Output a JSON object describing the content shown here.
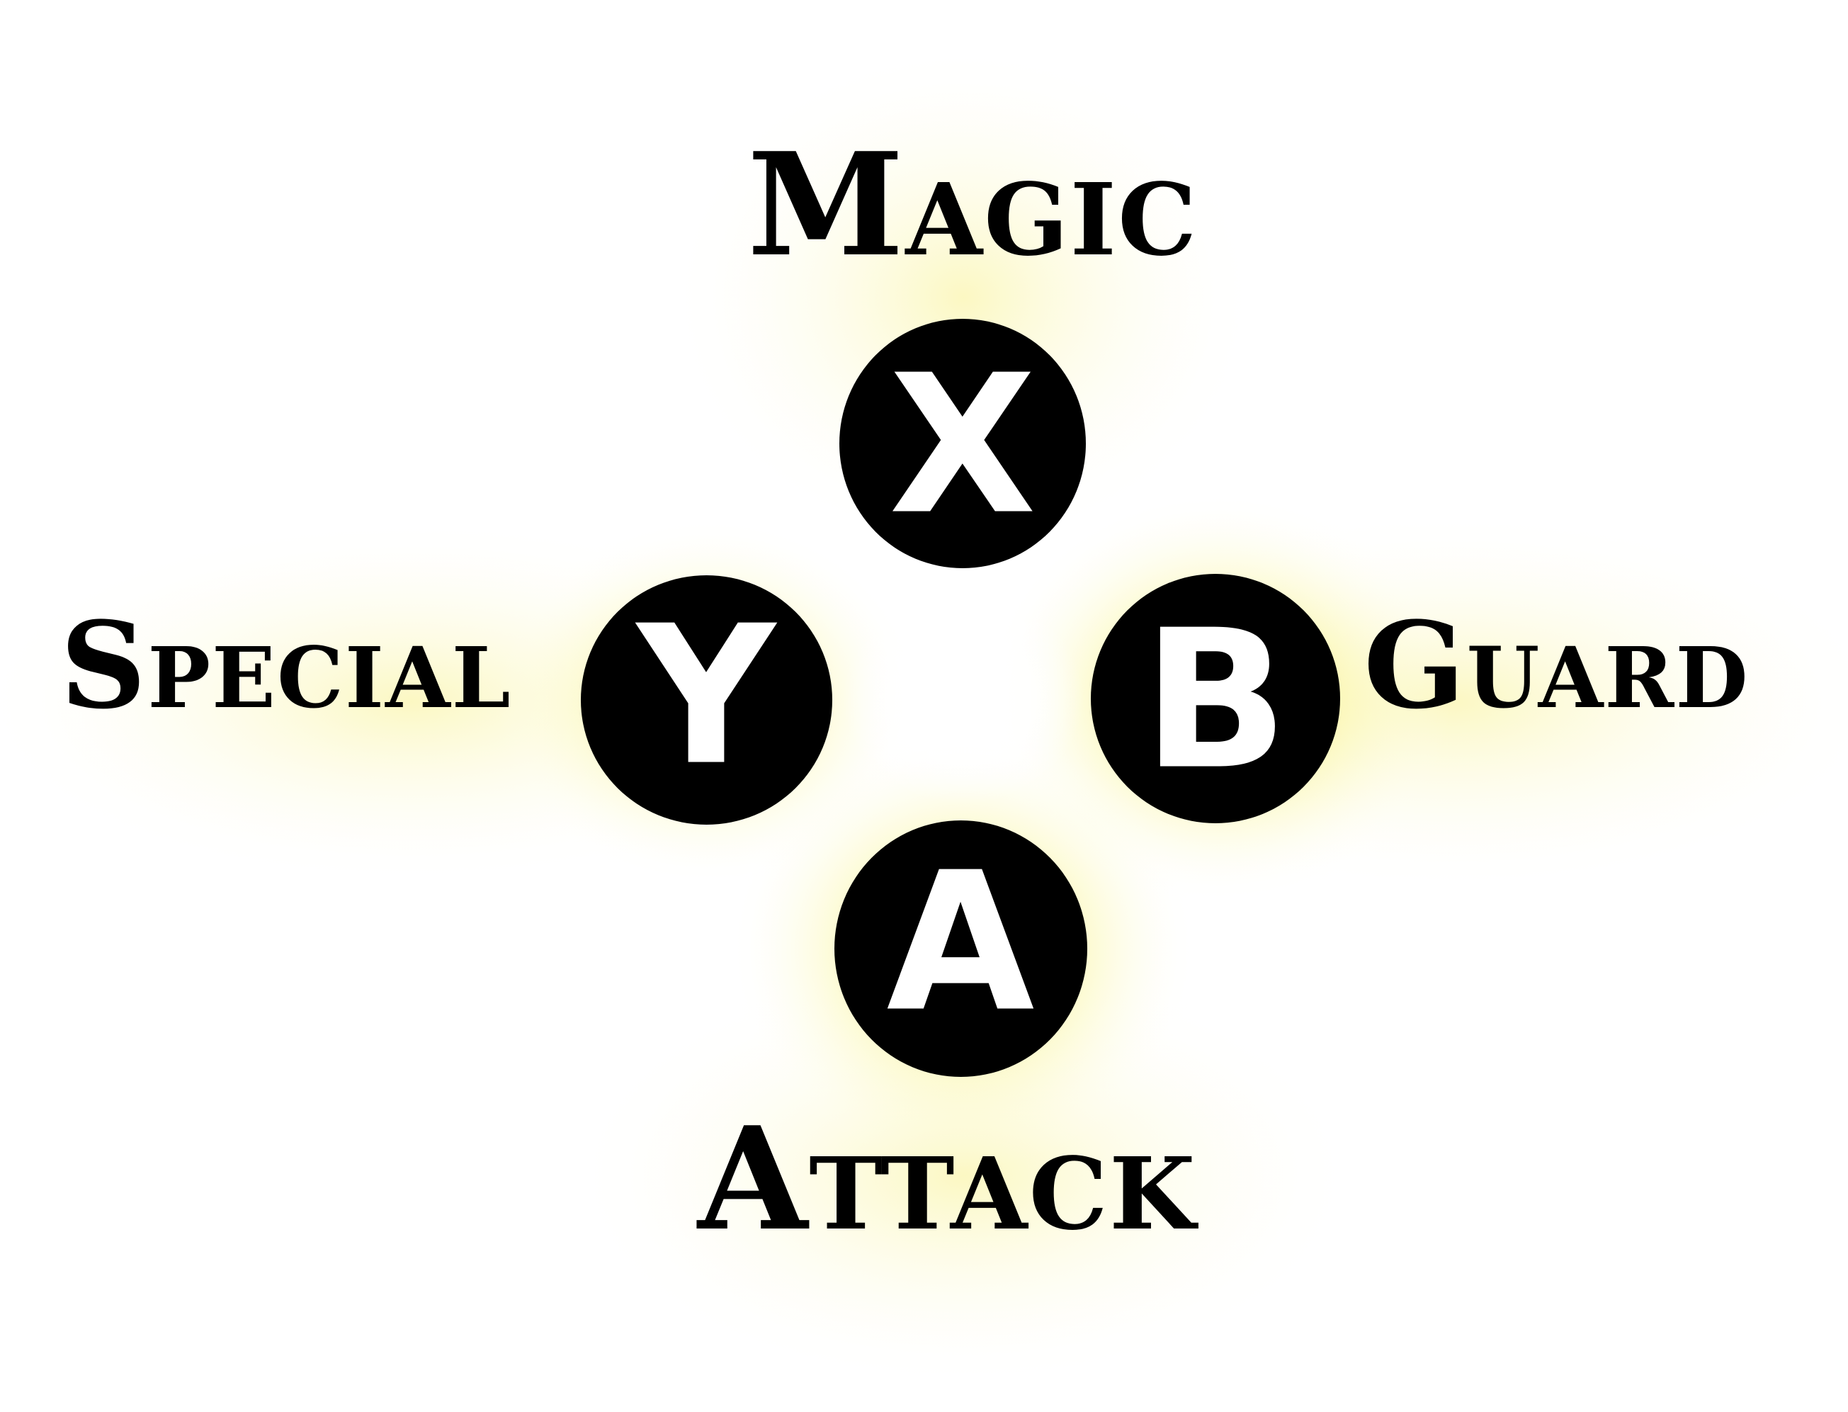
{
  "colors": {
    "background": "#ffffff",
    "glow": "#f6ee3c",
    "button_fill": "#000000",
    "button_letter": "#ffffff",
    "label_text": "#000000"
  },
  "buttons": {
    "x": {
      "letter": "X",
      "action": "Magic"
    },
    "y": {
      "letter": "Y",
      "action": "Special"
    },
    "b": {
      "letter": "B",
      "action": "Guard"
    },
    "a": {
      "letter": "A",
      "action": "Attack"
    }
  }
}
